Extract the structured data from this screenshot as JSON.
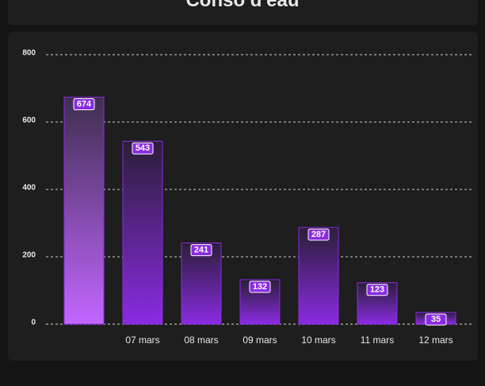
{
  "chart_data": {
    "type": "bar",
    "title": "Conso d'eau",
    "categories": [
      null,
      "07 mars",
      "08 mars",
      "09 mars",
      "10 mars",
      "11 mars",
      "12 mars"
    ],
    "values": [
      674,
      543,
      241,
      132,
      287,
      123,
      35
    ],
    "color": "#8a2be2",
    "ylim": [
      0,
      800
    ],
    "yticks": [
      0,
      200,
      400,
      600,
      800
    ],
    "grid": true
  }
}
